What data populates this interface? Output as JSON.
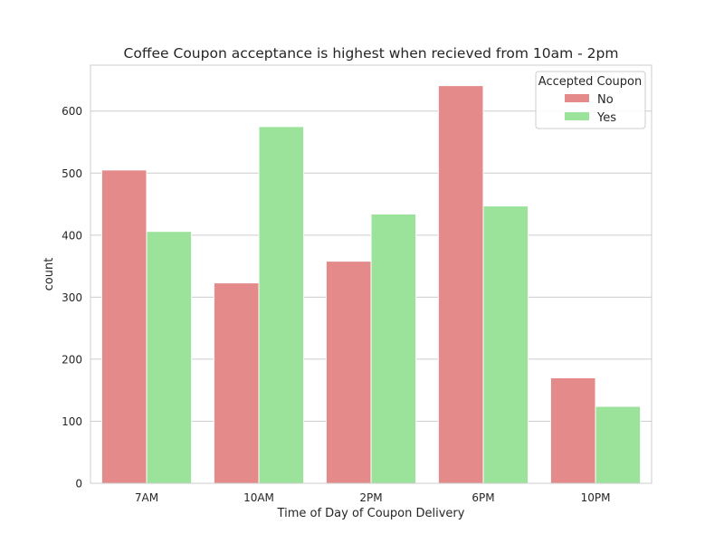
{
  "chart_data": {
    "type": "bar",
    "title": "Coffee Coupon acceptance is highest when recieved from 10am - 2pm",
    "xlabel": "Time of Day of Coupon Delivery",
    "ylabel": "count",
    "categories": [
      "7AM",
      "10AM",
      "2PM",
      "6PM",
      "10PM"
    ],
    "series": [
      {
        "name": "No",
        "values": [
          505,
          323,
          358,
          641,
          170
        ],
        "color": "#e48a8a"
      },
      {
        "name": "Yes",
        "values": [
          406,
          575,
          434,
          447,
          124
        ],
        "color": "#9be39a"
      }
    ],
    "ylim": [
      0,
      674
    ],
    "yticks": [
      0,
      100,
      200,
      300,
      400,
      500,
      600
    ],
    "legend": {
      "title": "Accepted Coupon",
      "placement": "top-right"
    },
    "grid": "horizontal",
    "style": {
      "grid_color": "#cccccc",
      "spine_color": "#cccccc"
    }
  }
}
